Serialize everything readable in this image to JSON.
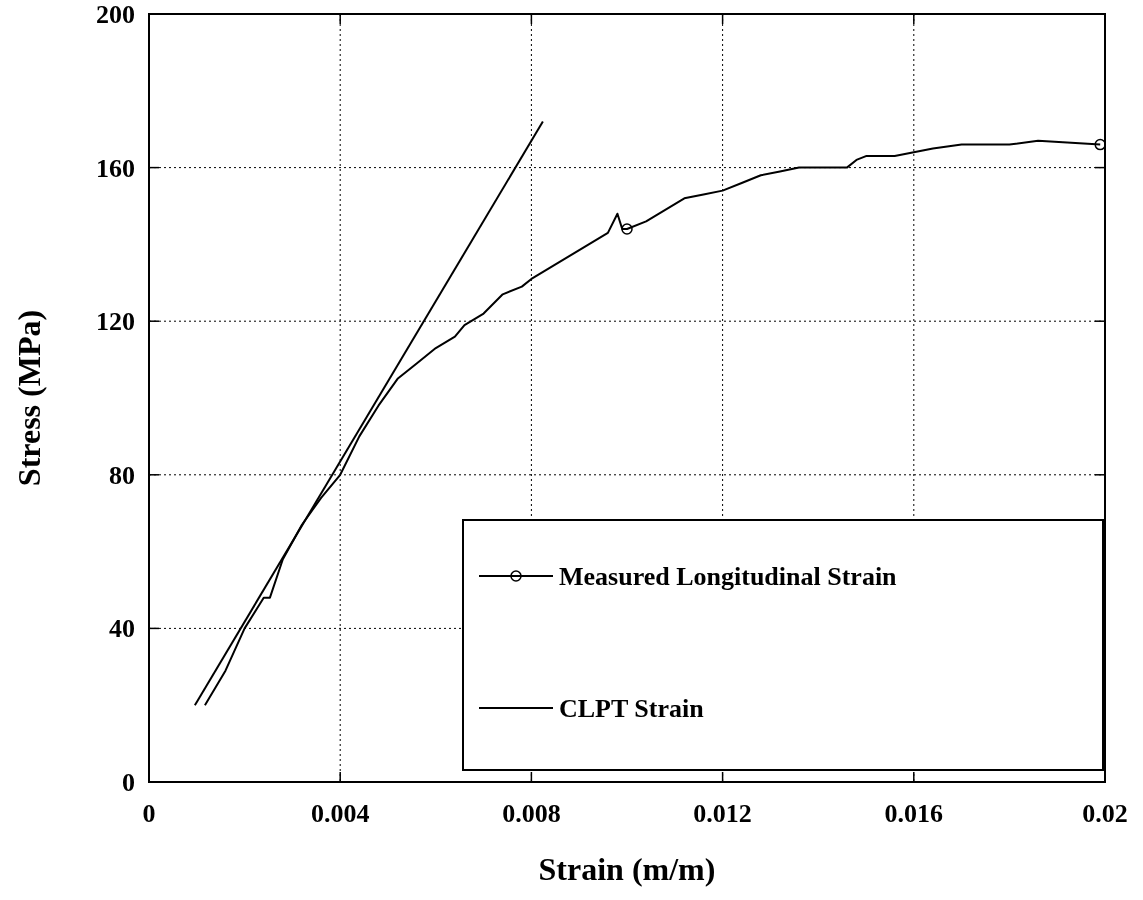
{
  "chart_data": {
    "type": "line",
    "xlabel": "Strain (m/m)",
    "ylabel": "Stress (MPa)",
    "xlim": [
      0,
      0.02
    ],
    "xticks": [
      0,
      0.004,
      0.008,
      0.012,
      0.016,
      0.02
    ],
    "ylim": [
      0,
      200
    ],
    "yticks": [
      0,
      40,
      80,
      120,
      160,
      200
    ],
    "grid": true,
    "legend": "bottom right",
    "line_style": "solid",
    "series": [
      {
        "name": "Measured Longitudinal Strain",
        "color": "#000000",
        "marker": "none",
        "x": [
          0.00117,
          0.0016,
          0.002,
          0.0024,
          0.00253,
          0.0028,
          0.0032,
          0.0036,
          0.004,
          0.0044,
          0.0048,
          0.0052,
          0.0056,
          0.006,
          0.0064,
          0.0066,
          0.007,
          0.0074,
          0.0078,
          0.008,
          0.0084,
          0.0088,
          0.0092,
          0.0096,
          0.0098,
          0.0099,
          0.01,
          0.0104,
          0.0108,
          0.0112,
          0.0116,
          0.012,
          0.0124,
          0.0128,
          0.0132,
          0.0136,
          0.014,
          0.0146,
          0.0148,
          0.015,
          0.0156,
          0.016,
          0.0164,
          0.017,
          0.018,
          0.0186,
          0.0199
        ],
        "values": [
          20,
          29,
          40,
          48,
          48,
          58,
          67,
          74,
          80,
          90,
          98,
          105,
          109,
          113,
          116,
          119,
          122,
          127,
          129,
          131,
          134,
          137,
          140,
          143,
          148,
          144,
          144,
          146,
          149,
          152,
          153,
          154,
          156,
          158,
          159,
          160,
          160,
          160,
          162,
          163,
          163,
          164,
          165,
          166,
          166,
          167,
          166
        ]
      },
      {
        "type": "scatter",
        "color": "#000000",
        "marker": "circle",
        "x": [
          0.01,
          0.0199
        ],
        "values": [
          144,
          166
        ]
      },
      {
        "name": "CLPT Strain",
        "color": "#000000",
        "marker": "none",
        "x": [
          0.00096,
          0.00824
        ],
        "values": [
          20,
          172
        ]
      }
    ]
  }
}
